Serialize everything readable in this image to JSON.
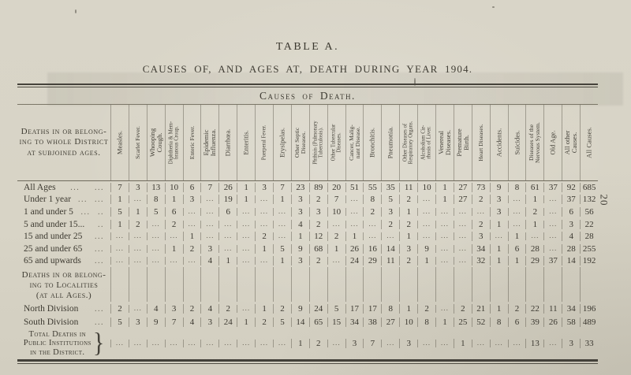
{
  "page": {
    "number": "20",
    "title": "TABLE A.",
    "subtitle": "CAUSES OF, AND AGES AT, DEATH DURING YEAR 1904."
  },
  "colors": {
    "paper": "#d8d4c6",
    "ink": "#3b3830"
  },
  "table": {
    "banner": "Causes of Death.",
    "stub_header": "Deaths in or belong-\ning to whole District\nat subjoined ages.",
    "empty_marker": "...",
    "columns": [
      "Measles.",
      "Scarlet Fever.",
      "Whooping\nCough.",
      "Diphtheria & Mem-\nbranous Croup.",
      "Enteric Fever.",
      "Epidemic\nInfluenza.",
      "Diarrhœa.",
      "Enteritis.",
      "Puerperal Fever.",
      "Erysipelas.",
      "Other Septic\nDiseases.",
      "Phthisis (Pulmonary\nTuberculosis).",
      "Other Tubercular\nDiseases.",
      "Cancer, Malig-\nnant Disease.",
      "Bronchitis.",
      "Pneumonia.",
      "Other Diseases of\nRespiratory Organs.",
      "Alcoholism Cir-\nrhosis of Liver.",
      "Venereal\nDiseases.",
      "Premature\nBirth.",
      "Heart Diseases.",
      "Accidents.",
      "Suicides.",
      "Diseases of the\nNervous System.",
      "Old Age.",
      "All other\nCauses.",
      "All Causes."
    ],
    "age_rows": [
      {
        "label": "All Ages",
        "leaders": [
          "...",
          "..."
        ],
        "values": [
          "7",
          "3",
          "13",
          "10",
          "6",
          "7",
          "26",
          "1",
          "3",
          "7",
          "23",
          "89",
          "20",
          "51",
          "55",
          "35",
          "11",
          "10",
          "1",
          "27",
          "73",
          "9",
          "8",
          "61",
          "37",
          "92",
          "685"
        ]
      },
      {
        "label": "Under 1 year",
        "leaders": [
          "...",
          "..."
        ],
        "values": [
          "1",
          "...",
          "8",
          "1",
          "3",
          "...",
          "19",
          "1",
          "...",
          "1",
          "3",
          "2",
          "7",
          "...",
          "8",
          "5",
          "2",
          "...",
          "1",
          "27",
          "2",
          "3",
          "...",
          "1",
          "...",
          "37",
          "132"
        ]
      },
      {
        "label": "1 and under 5",
        "leaders": [
          "...",
          ".."
        ],
        "values": [
          "5",
          "1",
          "5",
          "6",
          "...",
          "...",
          "6",
          "...",
          "...",
          "...",
          "3",
          "3",
          "10",
          "...",
          "2",
          "3",
          "1",
          "...",
          "...",
          "...",
          "...",
          "3",
          "...",
          "2",
          "...",
          "6",
          "56"
        ]
      },
      {
        "label": "5 and under 15...",
        "leaders": [
          ".."
        ],
        "values": [
          "1",
          "2",
          "...",
          "2",
          "...",
          "...",
          "...",
          "...",
          "...",
          "...",
          "4",
          "2",
          "...",
          "...",
          "...",
          "2",
          "2",
          "...",
          "...",
          "...",
          "2",
          "1",
          "...",
          "1",
          "...",
          "3",
          "22"
        ]
      },
      {
        "label": "15 and under 25",
        "leaders": [
          "..."
        ],
        "values": [
          "...",
          "...",
          "...",
          "...",
          "1",
          "...",
          "...",
          "...",
          "2",
          "...",
          "1",
          "12",
          "2",
          "1",
          "...",
          "...",
          "1",
          "...",
          "...",
          "...",
          "3",
          "...",
          "1",
          "...",
          "...",
          "4",
          "28"
        ]
      },
      {
        "label": "25 and under 65",
        "leaders": [
          "..."
        ],
        "values": [
          "...",
          "...",
          "...",
          "1",
          "2",
          "3",
          "...",
          "...",
          "1",
          "5",
          "9",
          "68",
          "1",
          "26",
          "16",
          "14",
          "3",
          "9",
          "...",
          "...",
          "34",
          "1",
          "6",
          "28",
          "...",
          "28",
          "255"
        ]
      },
      {
        "label": "65 and upwards",
        "leaders": [
          "..."
        ],
        "values": [
          "...",
          "...",
          "...",
          "...",
          "...",
          "4",
          "1",
          "...",
          "...",
          "1",
          "3",
          "2",
          "...",
          "24",
          "29",
          "11",
          "2",
          "1",
          "...",
          "...",
          "32",
          "1",
          "1",
          "29",
          "37",
          "14",
          "192"
        ]
      }
    ],
    "locality_section": {
      "header": "Deaths in or belong-\ning to Localities\n(at all Ages.)",
      "rows": [
        {
          "label": "North Division",
          "leaders": [
            "..."
          ],
          "values": [
            "2",
            "...",
            "4",
            "3",
            "2",
            "4",
            "2",
            "...",
            "1",
            "2",
            "9",
            "24",
            "5",
            "17",
            "17",
            "8",
            "1",
            "2",
            "...",
            "2",
            "21",
            "1",
            "2",
            "22",
            "11",
            "34",
            "196"
          ]
        },
        {
          "label": "South Division",
          "leaders": [
            "..."
          ],
          "values": [
            "5",
            "3",
            "9",
            "7",
            "4",
            "3",
            "24",
            "1",
            "2",
            "5",
            "14",
            "65",
            "15",
            "34",
            "38",
            "27",
            "10",
            "8",
            "1",
            "25",
            "52",
            "8",
            "6",
            "39",
            "26",
            "58",
            "489"
          ]
        }
      ]
    },
    "institutions_row": {
      "label": "Total Deaths in\nPublic Institutions\nin the District.",
      "brace": "}",
      "values": [
        "...",
        "...",
        "...",
        "...",
        "...",
        "...",
        "...",
        "...",
        "...",
        "...",
        "1",
        "2",
        "...",
        "3",
        "7",
        "...",
        "3",
        "...",
        "...",
        "1",
        "...",
        "...",
        "...",
        "13",
        "...",
        "3",
        "33"
      ]
    }
  }
}
